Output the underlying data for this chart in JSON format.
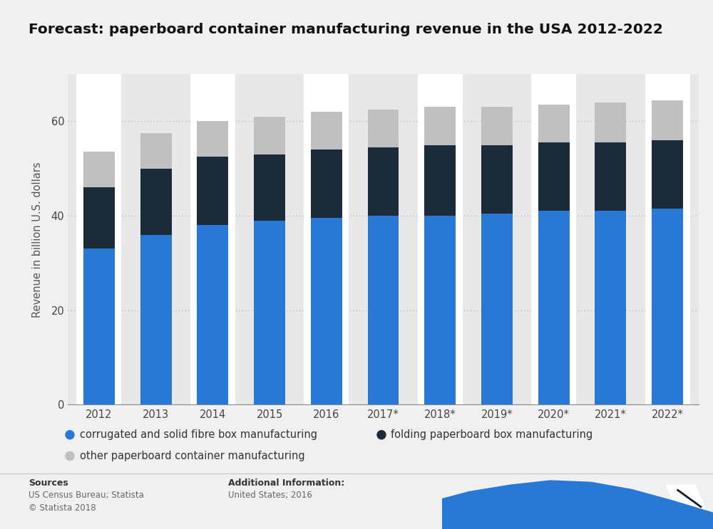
{
  "title": "Forecast: paperboard container manufacturing revenue in the USA 2012-2022",
  "years": [
    "2012",
    "2013",
    "2014",
    "2015",
    "2016",
    "2017*",
    "2018*",
    "2019*",
    "2020*",
    "2021*",
    "2022*"
  ],
  "corrugated": [
    33.0,
    36.0,
    38.0,
    39.0,
    39.5,
    40.0,
    40.0,
    40.5,
    41.0,
    41.0,
    41.5
  ],
  "folding": [
    13.0,
    14.0,
    14.5,
    14.0,
    14.5,
    14.5,
    15.0,
    14.5,
    14.5,
    14.5,
    14.5
  ],
  "other": [
    7.5,
    7.5,
    7.5,
    8.0,
    8.0,
    8.0,
    8.0,
    8.0,
    8.0,
    8.5,
    8.5
  ],
  "color_corrugated": "#2878d6",
  "color_folding": "#1c2b3a",
  "color_other": "#c0c0c0",
  "color_bg": "#f0f0f0",
  "color_plot_bg": "#e8e8e8",
  "color_white_col": "#ffffff",
  "ylabel": "Revenue in billion U.S. dollars",
  "ylim": [
    0,
    70
  ],
  "yticks": [
    0,
    20,
    40,
    60
  ],
  "legend_labels": [
    "corrugated and solid fibre box manufacturing",
    "folding paperboard box manufacturing",
    "other paperboard container manufacturing"
  ],
  "sources_bold": "Sources",
  "sources_text": "US Census Bureau; Statista\n© Statista 2018",
  "additional_bold": "Additional Information:",
  "additional_text": "United States; 2016",
  "title_fontsize": 14.5,
  "axis_fontsize": 10.5,
  "tick_fontsize": 10.5,
  "bar_width": 0.55,
  "logo_dark": "#0d1b2a",
  "logo_blue": "#2878d6"
}
